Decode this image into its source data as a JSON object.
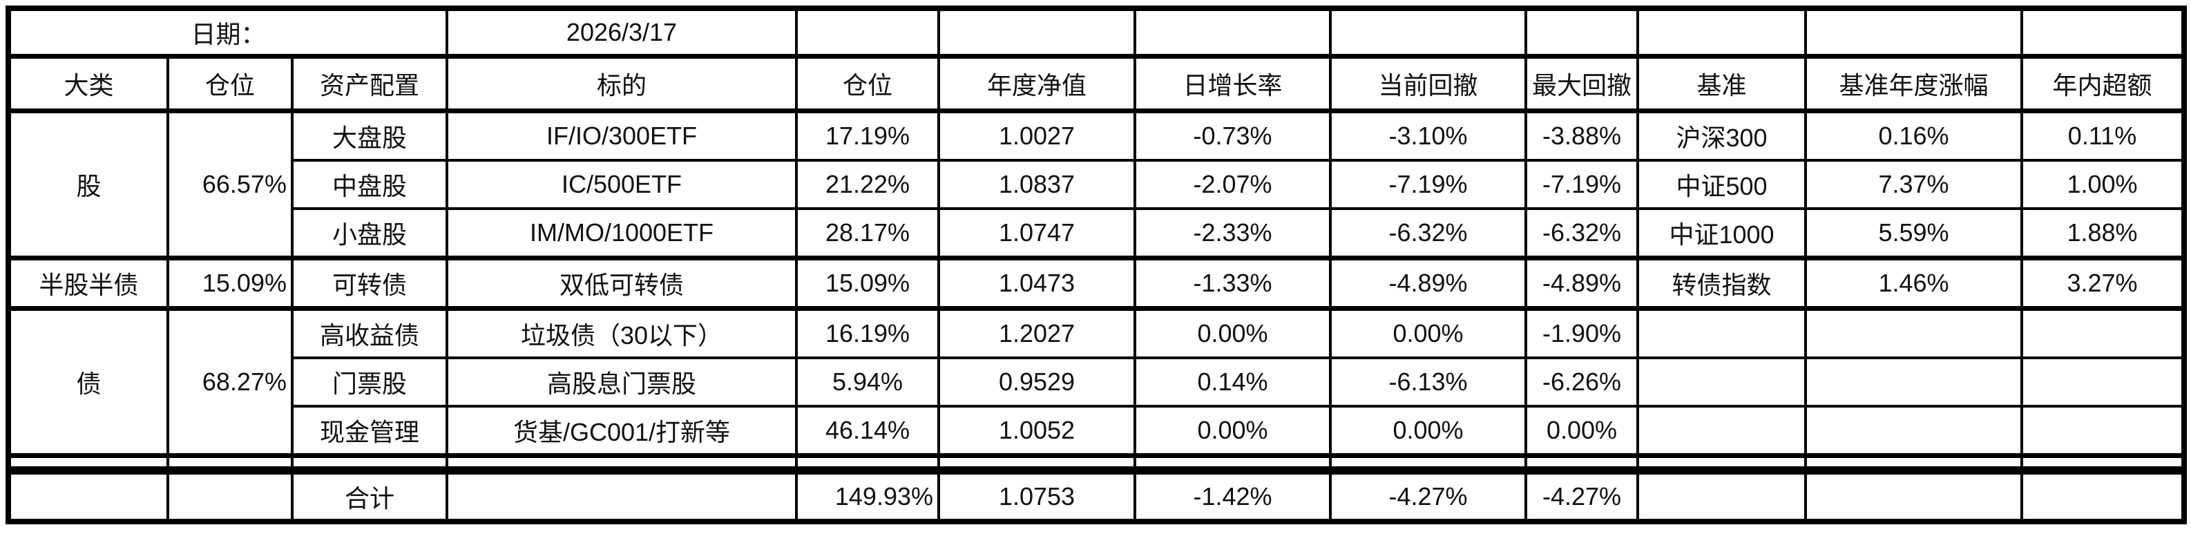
{
  "date_label": "日期：",
  "date_value": "2026/3/17",
  "headers": [
    "大类",
    "仓位",
    "资产配置",
    "标的",
    "仓位",
    "年度净值",
    "日增长率",
    "当前回撤",
    "最大回撤",
    "基准",
    "基准年度涨幅",
    "年内超额"
  ],
  "groups": [
    {
      "category": "股",
      "weight": "66.57%",
      "rows": [
        {
          "asset": "大盘股",
          "target": "IF/IO/300ETF",
          "weight": "17.19%",
          "nav": "1.0027",
          "daily": "-0.73%",
          "dd": "-3.10%",
          "maxdd": "-3.88%",
          "bench": "沪深300",
          "bench_ret": "0.16%",
          "excess": "0.11%"
        },
        {
          "asset": "中盘股",
          "target": "IC/500ETF",
          "weight": "21.22%",
          "nav": "1.0837",
          "daily": "-2.07%",
          "dd": "-7.19%",
          "maxdd": "-7.19%",
          "bench": "中证500",
          "bench_ret": "7.37%",
          "excess": "1.00%"
        },
        {
          "asset": "小盘股",
          "target": "IM/MO/1000ETF",
          "weight": "28.17%",
          "nav": "1.0747",
          "daily": "-2.33%",
          "dd": "-6.32%",
          "maxdd": "-6.32%",
          "bench": "中证1000",
          "bench_ret": "5.59%",
          "excess": "1.88%"
        }
      ]
    },
    {
      "category": "半股半债",
      "weight": "15.09%",
      "rows": [
        {
          "asset": "可转债",
          "target": "双低可转债",
          "weight": "15.09%",
          "nav": "1.0473",
          "daily": "-1.33%",
          "dd": "-4.89%",
          "maxdd": "-4.89%",
          "bench": "转债指数",
          "bench_ret": "1.46%",
          "excess": "3.27%"
        }
      ]
    },
    {
      "category": "债",
      "weight": "68.27%",
      "rows": [
        {
          "asset": "高收益债",
          "target": "垃圾债（30以下）",
          "weight": "16.19%",
          "nav": "1.2027",
          "daily": "0.00%",
          "dd": "0.00%",
          "maxdd": "-1.90%",
          "bench": "",
          "bench_ret": "",
          "excess": ""
        },
        {
          "asset": "门票股",
          "target": "高股息门票股",
          "weight": "5.94%",
          "nav": "0.9529",
          "daily": "0.14%",
          "dd": "-6.13%",
          "maxdd": "-6.26%",
          "bench": "",
          "bench_ret": "",
          "excess": ""
        },
        {
          "asset": "现金管理",
          "target": "货基/GC001/打新等",
          "weight": "46.14%",
          "nav": "1.0052",
          "daily": "0.00%",
          "dd": "0.00%",
          "maxdd": "0.00%",
          "bench": "",
          "bench_ret": "",
          "excess": ""
        }
      ]
    }
  ],
  "total": {
    "label": "合计",
    "weight": "149.93%",
    "nav": "1.0753",
    "daily": "-1.42%",
    "dd": "-4.27%",
    "maxdd": "-4.27%"
  }
}
